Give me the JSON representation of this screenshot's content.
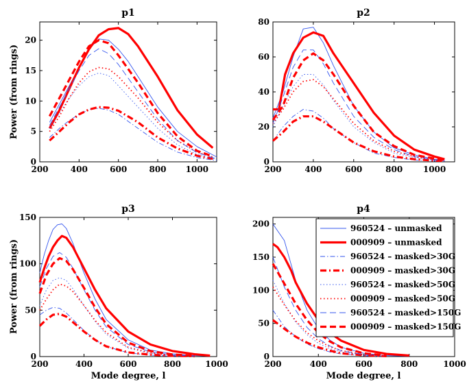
{
  "figure": {
    "panels": [
      {
        "title": "p1",
        "ylabel": "Power (from rings)",
        "xlabel": ""
      },
      {
        "title": "p2",
        "ylabel": "",
        "xlabel": ""
      },
      {
        "title": "p3",
        "ylabel": "Power (from rings)",
        "xlabel": "Mode degree, l"
      },
      {
        "title": "p4",
        "ylabel": "",
        "xlabel": "Mode degree, l"
      }
    ],
    "legend": {
      "entries": [
        "960524 – unmasked",
        "000909 – unmasked",
        "960524 – masked>30G",
        "000909 – masked>30G",
        "960524 – masked>50G",
        "000909 – masked>50G",
        "960524 – masked>150G",
        "000909 – masked>150G"
      ]
    }
  },
  "chart_data": [
    {
      "type": "line",
      "title": "p1",
      "xlabel": "",
      "ylabel": "Power (from rings)",
      "xlim": [
        200,
        1100
      ],
      "ylim": [
        0,
        23
      ],
      "xticks": [
        200,
        400,
        600,
        800,
        1000
      ],
      "yticks": [
        0,
        5,
        10,
        15,
        20
      ],
      "series": [
        {
          "name": "960524 – unmasked",
          "x": [
            250,
            300,
            350,
            400,
            450,
            500,
            550,
            600,
            650,
            700,
            800,
            900,
            1000,
            1100
          ],
          "values": [
            6.5,
            9.5,
            12.5,
            15.5,
            18.5,
            20.2,
            20.0,
            18.5,
            16.5,
            14.0,
            9.0,
            5.0,
            2.5,
            0.8
          ]
        },
        {
          "name": "000909 – unmasked",
          "x": [
            250,
            300,
            350,
            400,
            450,
            500,
            550,
            600,
            650,
            700,
            800,
            900,
            1000,
            1080
          ],
          "values": [
            5.5,
            8.5,
            12.0,
            15.5,
            18.5,
            20.8,
            21.8,
            22.0,
            21.0,
            19.0,
            14.0,
            8.5,
            4.5,
            2.3
          ]
        },
        {
          "name": "960524 – masked>30G",
          "x": [
            250,
            300,
            350,
            400,
            450,
            500,
            550,
            600,
            700,
            800,
            900,
            1000,
            1100
          ],
          "values": [
            4.0,
            5.5,
            6.8,
            7.8,
            8.6,
            8.8,
            8.5,
            7.8,
            5.5,
            3.2,
            1.6,
            0.7,
            0.2
          ]
        },
        {
          "name": "000909 – masked>30G",
          "x": [
            250,
            300,
            350,
            400,
            450,
            500,
            550,
            600,
            700,
            800,
            900,
            1000,
            1080
          ],
          "values": [
            3.5,
            5.0,
            6.5,
            7.8,
            8.6,
            9.0,
            8.9,
            8.4,
            6.5,
            4.0,
            2.2,
            1.0,
            0.5
          ]
        },
        {
          "name": "960524 – masked>50G",
          "x": [
            250,
            300,
            350,
            400,
            450,
            500,
            550,
            600,
            700,
            800,
            900,
            1000,
            1100
          ],
          "values": [
            5.5,
            8.0,
            10.5,
            12.5,
            14.0,
            14.6,
            14.2,
            12.5,
            9.0,
            5.5,
            2.8,
            1.2,
            0.4
          ]
        },
        {
          "name": "000909 – masked>50G",
          "x": [
            250,
            300,
            350,
            400,
            450,
            500,
            550,
            600,
            700,
            800,
            900,
            1000,
            1080
          ],
          "values": [
            5.0,
            7.5,
            10.5,
            13.0,
            14.8,
            15.5,
            15.3,
            14.0,
            10.5,
            6.5,
            3.5,
            1.6,
            0.8
          ]
        },
        {
          "name": "960524 – masked>150G",
          "x": [
            250,
            300,
            350,
            400,
            450,
            500,
            550,
            600,
            700,
            800,
            900,
            1000,
            1100
          ],
          "values": [
            6.0,
            9.0,
            12.0,
            15.0,
            17.5,
            18.6,
            17.8,
            16.0,
            11.5,
            7.0,
            3.5,
            1.5,
            0.5
          ]
        },
        {
          "name": "000909 – masked>150G",
          "x": [
            250,
            300,
            350,
            400,
            450,
            500,
            550,
            600,
            700,
            800,
            900,
            1000,
            1080
          ],
          "values": [
            7.5,
            10.5,
            13.5,
            16.5,
            19.0,
            20.0,
            19.5,
            17.5,
            13.0,
            8.0,
            4.2,
            1.8,
            0.9
          ]
        }
      ]
    },
    {
      "type": "line",
      "title": "p2",
      "xlabel": "",
      "ylabel": "",
      "xlim": [
        200,
        1100
      ],
      "ylim": [
        0,
        80
      ],
      "xticks": [
        200,
        400,
        600,
        800,
        1000
      ],
      "yticks": [
        0,
        20,
        40,
        60,
        80
      ],
      "series": [
        {
          "name": "960524 – unmasked",
          "x": [
            200,
            250,
            300,
            350,
            400,
            450,
            500,
            600,
            700,
            800,
            900,
            1000,
            1050
          ],
          "values": [
            25,
            40,
            60,
            76,
            77,
            68,
            55,
            32,
            17,
            8,
            4,
            1.5,
            1
          ]
        },
        {
          "name": "000909 – unmasked",
          "x": [
            200,
            230,
            260,
            300,
            350,
            400,
            450,
            500,
            600,
            700,
            800,
            900,
            1000,
            1050
          ],
          "values": [
            30,
            30,
            50,
            62,
            71,
            74,
            72,
            62,
            45,
            28,
            15,
            7,
            3,
            1.5
          ]
        },
        {
          "name": "960524 – masked>30G",
          "x": [
            200,
            250,
            300,
            350,
            400,
            450,
            500,
            600,
            700,
            800,
            900,
            1000,
            1050
          ],
          "values": [
            12,
            20,
            26,
            30,
            29,
            25,
            19,
            11,
            5,
            2.5,
            1,
            0.5,
            0.3
          ]
        },
        {
          "name": "000909 – masked>30G",
          "x": [
            200,
            250,
            300,
            350,
            400,
            450,
            500,
            600,
            700,
            800,
            900,
            1000,
            1050
          ],
          "values": [
            12,
            17,
            23,
            26,
            26,
            23,
            19,
            11,
            6,
            3,
            1.5,
            0.7,
            0.5
          ]
        },
        {
          "name": "960524 – masked>50G",
          "x": [
            200,
            250,
            300,
            350,
            400,
            450,
            500,
            600,
            700,
            800,
            900,
            1000,
            1050
          ],
          "values": [
            20,
            32,
            43,
            50,
            50,
            44,
            35,
            20,
            11,
            5,
            2.5,
            1,
            0.6
          ]
        },
        {
          "name": "000909 – masked>50G",
          "x": [
            200,
            250,
            300,
            350,
            400,
            450,
            500,
            600,
            700,
            800,
            900,
            1000,
            1050
          ],
          "values": [
            22,
            30,
            40,
            46,
            47,
            43,
            36,
            22,
            12,
            6,
            3,
            1.2,
            0.8
          ]
        },
        {
          "name": "960524 – masked>150G",
          "x": [
            200,
            250,
            300,
            350,
            400,
            450,
            500,
            600,
            700,
            800,
            900,
            1000,
            1050
          ],
          "values": [
            22,
            37,
            54,
            64,
            64,
            56,
            45,
            26,
            14,
            7,
            3,
            1.2,
            0.8
          ]
        },
        {
          "name": "000909 – masked>150G",
          "x": [
            200,
            250,
            300,
            350,
            400,
            450,
            500,
            600,
            700,
            800,
            900,
            1000,
            1050
          ],
          "values": [
            24,
            32,
            48,
            58,
            62,
            58,
            50,
            32,
            17,
            9,
            4,
            1.8,
            1
          ]
        }
      ]
    },
    {
      "type": "line",
      "title": "p3",
      "xlabel": "Mode degree, l",
      "ylabel": "Power (from rings)",
      "xlim": [
        200,
        1000
      ],
      "ylim": [
        0,
        150
      ],
      "xticks": [
        200,
        400,
        600,
        800,
        1000
      ],
      "yticks": [
        0,
        50,
        100,
        150
      ],
      "series": [
        {
          "name": "960524 – unmasked",
          "x": [
            200,
            220,
            240,
            260,
            280,
            300,
            320,
            350,
            400,
            450,
            500,
            600,
            700,
            800,
            900,
            960
          ],
          "values": [
            90,
            110,
            125,
            137,
            142,
            143,
            138,
            122,
            90,
            62,
            40,
            18,
            7,
            3,
            1,
            0.5
          ]
        },
        {
          "name": "000909 – unmasked",
          "x": [
            200,
            220,
            240,
            260,
            280,
            300,
            320,
            350,
            400,
            450,
            500,
            600,
            700,
            800,
            900,
            970
          ],
          "values": [
            80,
            95,
            108,
            118,
            125,
            130,
            128,
            118,
            95,
            72,
            52,
            27,
            13,
            6,
            2.5,
            1
          ]
        },
        {
          "name": "960524 – masked>30G",
          "x": [
            200,
            230,
            260,
            290,
            320,
            350,
            400,
            450,
            500,
            600,
            700,
            800,
            900
          ],
          "values": [
            45,
            50,
            53,
            52,
            47,
            40,
            28,
            18,
            11,
            4,
            1.5,
            0.6,
            0.3
          ]
        },
        {
          "name": "000909 – masked>30G",
          "x": [
            200,
            230,
            260,
            290,
            320,
            350,
            400,
            450,
            500,
            600,
            700,
            800,
            900
          ],
          "values": [
            33,
            40,
            45,
            46,
            43,
            37,
            27,
            18,
            11,
            4.5,
            2,
            0.8,
            0.4
          ]
        },
        {
          "name": "960524 – masked>50G",
          "x": [
            200,
            230,
            260,
            290,
            320,
            350,
            400,
            450,
            500,
            600,
            700,
            800,
            900
          ],
          "values": [
            55,
            72,
            82,
            85,
            82,
            73,
            55,
            38,
            24,
            9,
            3.5,
            1.2,
            0.5
          ]
        },
        {
          "name": "000909 – masked>50G",
          "x": [
            200,
            230,
            260,
            290,
            320,
            350,
            400,
            450,
            500,
            600,
            700,
            800,
            900
          ],
          "values": [
            50,
            62,
            72,
            78,
            76,
            70,
            55,
            39,
            26,
            10,
            4,
            1.5,
            0.6
          ]
        },
        {
          "name": "960524 – masked>150G",
          "x": [
            200,
            230,
            260,
            290,
            320,
            350,
            400,
            450,
            500,
            600,
            700,
            800,
            900
          ],
          "values": [
            75,
            95,
            108,
            112,
            107,
            95,
            72,
            50,
            32,
            13,
            5,
            1.8,
            0.7
          ]
        },
        {
          "name": "000909 – masked>150G",
          "x": [
            200,
            230,
            260,
            290,
            320,
            350,
            400,
            450,
            500,
            600,
            700,
            800,
            900
          ],
          "values": [
            68,
            88,
            100,
            106,
            103,
            94,
            74,
            53,
            35,
            15,
            6,
            2.2,
            0.9
          ]
        }
      ]
    },
    {
      "type": "line",
      "title": "p4",
      "xlabel": "Mode degree, l",
      "ylabel": "",
      "xlim": [
        200,
        1000
      ],
      "ylim": [
        0,
        210
      ],
      "xticks": [
        200,
        400,
        600,
        800,
        1000
      ],
      "yticks": [
        0,
        50,
        100,
        150,
        200
      ],
      "series": [
        {
          "name": "960524 – unmasked",
          "x": [
            200,
            250,
            300,
            350,
            400,
            450,
            500,
            600,
            700,
            800
          ],
          "values": [
            200,
            175,
            115,
            70,
            42,
            25,
            14,
            5,
            1.5,
            0.5
          ]
        },
        {
          "name": "000909 – unmasked",
          "x": [
            200,
            220,
            250,
            280,
            300,
            350,
            400,
            450,
            500,
            600,
            700,
            800
          ],
          "values": [
            170,
            165,
            150,
            130,
            112,
            80,
            55,
            36,
            24,
            10,
            4,
            1.5
          ]
        },
        {
          "name": "960524 – masked>30G",
          "x": [
            200,
            250,
            300,
            350,
            400,
            450,
            500,
            600,
            700
          ],
          "values": [
            70,
            45,
            30,
            19,
            12,
            7,
            4,
            1.2,
            0.4
          ]
        },
        {
          "name": "000909 – masked>30G",
          "x": [
            200,
            250,
            300,
            350,
            400,
            450,
            500,
            600,
            700
          ],
          "values": [
            55,
            42,
            30,
            21,
            14,
            9,
            5,
            2,
            0.6
          ]
        },
        {
          "name": "960524 – masked>50G",
          "x": [
            200,
            250,
            300,
            350,
            400,
            450,
            500,
            600,
            700
          ],
          "values": [
            115,
            80,
            52,
            33,
            20,
            12,
            7,
            2.2,
            0.7
          ]
        },
        {
          "name": "000909 – masked>50G",
          "x": [
            200,
            250,
            300,
            350,
            400,
            450,
            500,
            600,
            700
          ],
          "values": [
            105,
            78,
            54,
            36,
            24,
            15,
            9,
            3,
            1
          ]
        },
        {
          "name": "960524 – masked>150G",
          "x": [
            200,
            250,
            300,
            350,
            400,
            450,
            500,
            600,
            700
          ],
          "values": [
            150,
            105,
            70,
            44,
            27,
            16,
            9,
            3,
            1
          ]
        },
        {
          "name": "000909 – masked>150G",
          "x": [
            200,
            250,
            300,
            350,
            400,
            450,
            500,
            600,
            700
          ],
          "values": [
            140,
            110,
            80,
            55,
            36,
            23,
            14,
            5,
            1.6
          ]
        }
      ]
    }
  ]
}
